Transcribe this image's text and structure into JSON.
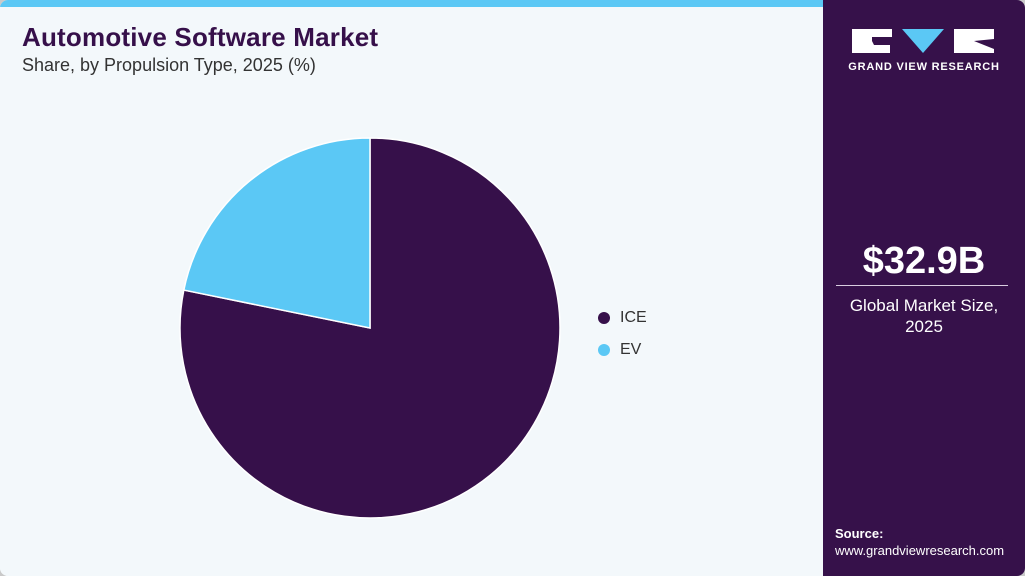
{
  "header": {
    "title": "Automotive Software Market",
    "subtitle": "Share, by Propulsion Type, 2025 (%)"
  },
  "brand": {
    "logo_text": "GRAND VIEW RESEARCH",
    "accent": "#5bc8f5",
    "primary": "#36114a"
  },
  "sidebar": {
    "market_value": "$32.9B",
    "market_label_line1": "Global Market Size,",
    "market_label_line2": "2025",
    "source_label": "Source:",
    "source_url": "www.grandviewresearch.com"
  },
  "legend": [
    {
      "label": "ICE",
      "color": "#36104a"
    },
    {
      "label": "EV",
      "color": "#5bc8f5"
    }
  ],
  "chart_data": {
    "type": "pie",
    "title": "Automotive Software Market",
    "subtitle": "Share, by Propulsion Type, 2025 (%)",
    "categories": [
      "ICE",
      "EV"
    ],
    "values": [
      78.2,
      21.8
    ],
    "colors": [
      "#36104a",
      "#5bc8f5"
    ],
    "legend_position": "right"
  }
}
